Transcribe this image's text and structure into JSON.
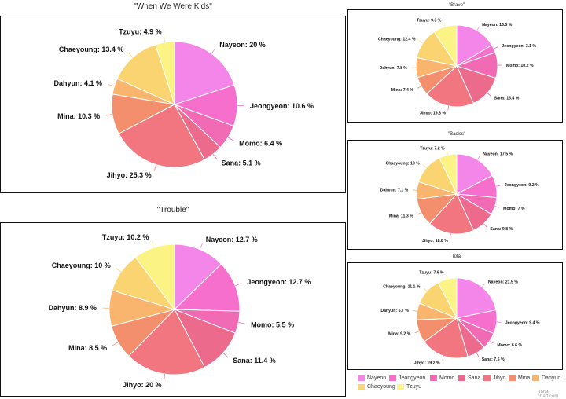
{
  "colors": [
    "#f386e8",
    "#f66fcd",
    "#f06ab4",
    "#ec6b8d",
    "#f1767f",
    "#f48f6e",
    "#f9b46e",
    "#f9d470",
    "#fbf384"
  ],
  "legend": [
    "Nayeon",
    "Jeongyeon",
    "Momo",
    "Sana",
    "Jihyo",
    "Mina",
    "Dahyun",
    "Chaeyoung",
    "Tzuyu"
  ],
  "watermark": "meta-chart.com",
  "chart_data": [
    {
      "type": "pie",
      "title": "\"When We Were Kids\"",
      "labels": [
        "Nayeon",
        "Jeongyeon",
        "Momo",
        "Sana",
        "Jihyo",
        "Mina",
        "Dahyun",
        "Chaeyoung",
        "Tzuyu"
      ],
      "values": [
        20,
        10.6,
        6.4,
        5.1,
        25.3,
        10.3,
        4.1,
        13.4,
        4.9
      ],
      "display": [
        "Nayeon: 20 %",
        "Jeongyeon: 10.6 %",
        "Momo: 6.4 %",
        "Sana: 5.1 %",
        "Jihyo: 25.3 %",
        "Mina: 10.3 %",
        "Dahyun: 4.1 %",
        "Chaeyoung: 13.4 %",
        "Tzuyu: 4.9 %"
      ]
    },
    {
      "type": "pie",
      "title": "\"Trouble\"",
      "labels": [
        "Nayeon",
        "Jeongyeon",
        "Momo",
        "Sana",
        "Jihyo",
        "Mina",
        "Dahyun",
        "Chaeyoung",
        "Tzuyu"
      ],
      "values": [
        12.7,
        12.7,
        5.5,
        11.4,
        20,
        8.5,
        8.9,
        10,
        10.2
      ],
      "display": [
        "Nayeon: 12.7 %",
        "Jeongyeon: 12.7 %",
        "Momo: 5.5 %",
        "Sana: 11.4 %",
        "Jihyo: 20 %",
        "Mina: 8.5 %",
        "Dahyun: 8.9 %",
        "Chaeyoung: 10 %",
        "Tzuyu: 10.2 %"
      ]
    },
    {
      "type": "pie",
      "title": "\"Brave\"",
      "labels": [
        "Nayeon",
        "Jeongyeon",
        "Momo",
        "Sana",
        "Jihyo",
        "Mina",
        "Dahyun",
        "Chaeyoung",
        "Tzuyu"
      ],
      "values": [
        16.5,
        3.1,
        10.2,
        13.4,
        19.8,
        7.4,
        7.8,
        12.4,
        9.3
      ],
      "display": [
        "Nayeon: 16.5 %",
        "Jeongyeon: 3.1 %",
        "Momo: 10.2 %",
        "Sana: 13.4 %",
        "Jihyo: 19.8 %",
        "Mina: 7.4 %",
        "Dahyun: 7.8 %",
        "Chaeyoung: 12.4 %",
        "Tzuyu: 9.3 %"
      ]
    },
    {
      "type": "pie",
      "title": "\"Basics\"",
      "labels": [
        "Nayeon",
        "Jeongyeon",
        "Momo",
        "Sana",
        "Jihyo",
        "Mina",
        "Dahyun",
        "Chaeyoung",
        "Tzuyu"
      ],
      "values": [
        17.5,
        9.2,
        7,
        9.8,
        18.8,
        11.3,
        7.1,
        13,
        7.2
      ],
      "display": [
        "Nayeon: 17.5 %",
        "Jeongyeon: 9.2 %",
        "Momo: 7 %",
        "Sana: 9.8 %",
        "Jihyo: 18.8 %",
        "Mina: 11.3 %",
        "Dahyun: 7.1 %",
        "Chaeyoung: 13 %",
        "Tzuyu: 7.2 %"
      ]
    },
    {
      "type": "pie",
      "title": "Total",
      "labels": [
        "Nayeon",
        "Jeongyeon",
        "Momo",
        "Sana",
        "Jihyo",
        "Mina",
        "Dahyun",
        "Chaeyoung",
        "Tzuyu"
      ],
      "values": [
        21.5,
        9.4,
        6.6,
        7.5,
        19.2,
        9.2,
        6.7,
        11.1,
        7.6
      ],
      "display": [
        "Nayeon: 21.5 %",
        "Jeongyeon: 9.4 %",
        "Momo: 6.6 %",
        "Sana: 7.5 %",
        "Jihyo: 19.2 %",
        "Mina: 9.2 %",
        "Dahyun: 6.7 %",
        "Chaeyoung: 11.1 %",
        "Tzuyu: 7.6 %"
      ]
    }
  ]
}
